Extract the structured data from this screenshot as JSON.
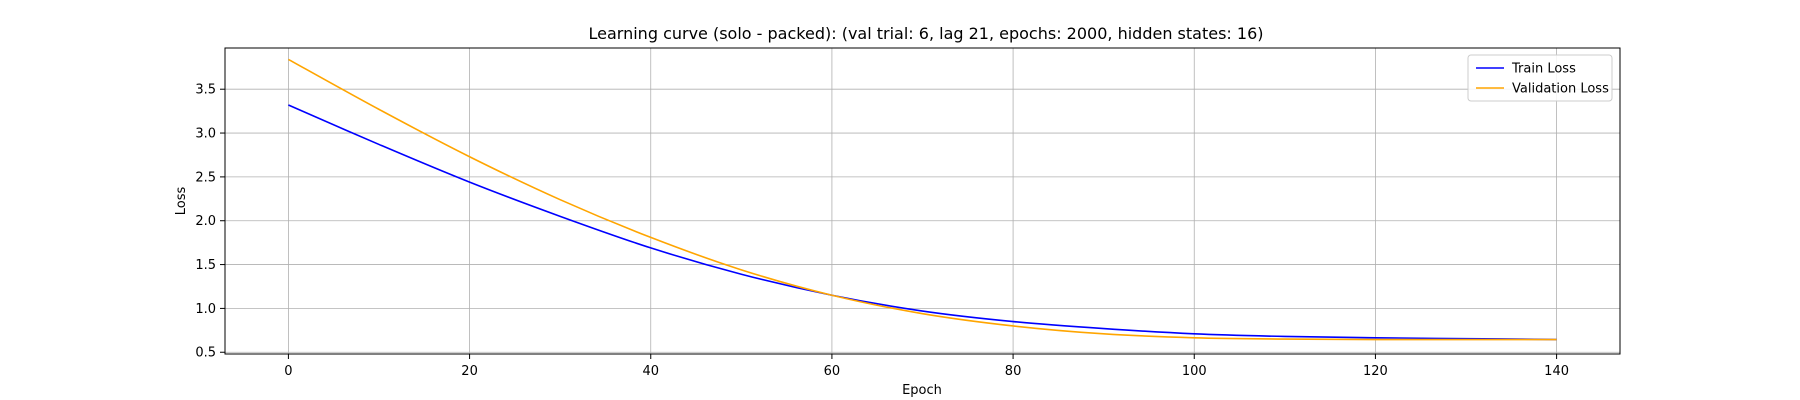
{
  "chart_data": {
    "type": "line",
    "title": "Learning curve (solo - packed): (val trial: 6, lag 21, epochs: 2000, hidden states: 16)",
    "xlabel": "Epoch",
    "ylabel": "Loss",
    "xlim": [
      -7,
      147
    ],
    "ylim": [
      0.48,
      3.97
    ],
    "xticks": [
      0,
      20,
      40,
      60,
      80,
      100,
      120,
      140
    ],
    "yticks": [
      0.5,
      1.0,
      1.5,
      2.0,
      2.5,
      3.0,
      3.5
    ],
    "ytick_labels": [
      "0.5",
      "1.0",
      "1.5",
      "2.0",
      "2.5",
      "3.0",
      "3.5"
    ],
    "grid": true,
    "legend_position": "top-right",
    "series": [
      {
        "name": "Train Loss",
        "color": "#0000ff",
        "x": [
          0,
          10,
          20,
          30,
          40,
          50,
          60,
          70,
          80,
          90,
          100,
          110,
          120,
          130,
          140
        ],
        "values": [
          3.32,
          2.87,
          2.44,
          2.05,
          1.69,
          1.39,
          1.15,
          0.97,
          0.85,
          0.77,
          0.71,
          0.68,
          0.665,
          0.655,
          0.645
        ]
      },
      {
        "name": "Validation Loss",
        "color": "#ffa500",
        "x": [
          0,
          10,
          20,
          30,
          40,
          50,
          60,
          70,
          80,
          90,
          100,
          110,
          120,
          130,
          140
        ],
        "values": [
          3.84,
          3.27,
          2.73,
          2.24,
          1.81,
          1.44,
          1.15,
          0.94,
          0.8,
          0.71,
          0.665,
          0.65,
          0.645,
          0.645,
          0.645
        ]
      }
    ]
  }
}
